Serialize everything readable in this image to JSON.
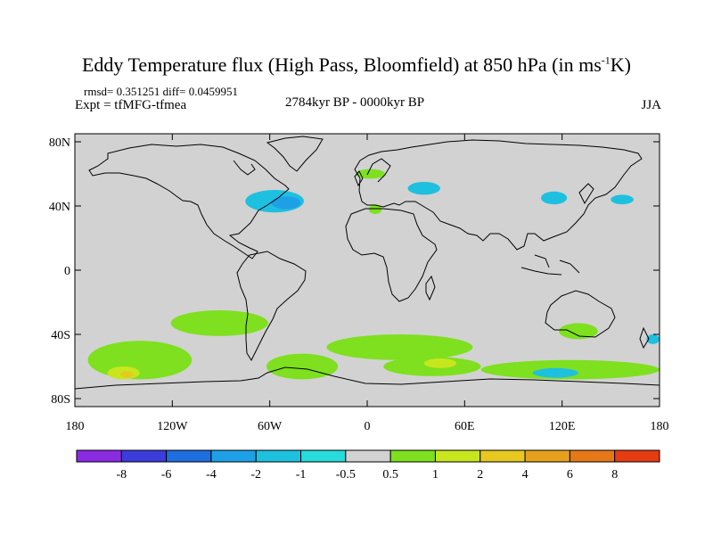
{
  "title": {
    "main": "Eddy Temperature flux (High Pass, Bloomfield) at 850 hPa (in ms",
    "sup": "-1",
    "tail": "K)"
  },
  "stats": "rmsd= 0.351251  diff= 0.0459951",
  "experiment": "Expt = tfMFG-tfmea",
  "period": "2784kyr BP - 0000kyr BP",
  "season": "JJA",
  "axes": {
    "lat_ticks": [
      "80N",
      "40N",
      "0",
      "40S",
      "80S"
    ],
    "lat_values": [
      80,
      40,
      0,
      -40,
      -80
    ],
    "lon_ticks": [
      "180",
      "120W",
      "60W",
      "0",
      "60E",
      "120E",
      "180"
    ],
    "lon_values": [
      -180,
      -120,
      -60,
      0,
      60,
      120,
      180
    ]
  },
  "colorbar": {
    "labels": [
      "-8",
      "-6",
      "-4",
      "-2",
      "-1",
      "-0.5",
      "0.5",
      "1",
      "2",
      "4",
      "6",
      "8"
    ],
    "colors": [
      "#8a2be2",
      "#3c3cdc",
      "#1e6ee0",
      "#1ea0e6",
      "#1ec0e0",
      "#28dcdc",
      "#d2d2d2",
      "#7ee01e",
      "#c8e61e",
      "#e6c81e",
      "#e6a01e",
      "#e67818",
      "#e63c14"
    ]
  },
  "colors": {
    "background_field": "#d2d2d2",
    "coast": "#000000"
  },
  "anomalies": [
    {
      "level": "-1",
      "lon": -57,
      "lat": 43,
      "rlon": 18,
      "rlat": 7
    },
    {
      "level": "-2",
      "lon": -50,
      "lat": 42,
      "rlon": 9,
      "rlat": 4
    },
    {
      "level": "-1",
      "lon": 35,
      "lat": 51,
      "rlon": 10,
      "rlat": 4
    },
    {
      "level": "-1",
      "lon": 115,
      "lat": 45,
      "rlon": 8,
      "rlat": 4
    },
    {
      "level": "-1",
      "lon": 157,
      "lat": 44,
      "rlon": 7,
      "rlat": 3
    },
    {
      "level": "1",
      "lon": 2,
      "lat": 60,
      "rlon": 9,
      "rlat": 3
    },
    {
      "level": "1",
      "lon": 5,
      "lat": 38,
      "rlon": 4,
      "rlat": 3
    },
    {
      "level": "1",
      "lon": -91,
      "lat": -33,
      "rlon": 30,
      "rlat": 8
    },
    {
      "level": "1",
      "lon": -140,
      "lat": -56,
      "rlon": 32,
      "rlat": 12
    },
    {
      "level": "2",
      "lon": -150,
      "lat": -64,
      "rlon": 10,
      "rlat": 4
    },
    {
      "level": "4",
      "lon": -148,
      "lat": -65,
      "rlon": 4,
      "rlat": 2
    },
    {
      "level": "1",
      "lon": 20,
      "lat": -48,
      "rlon": 45,
      "rlat": 8
    },
    {
      "level": "1",
      "lon": 40,
      "lat": -60,
      "rlon": 30,
      "rlat": 6
    },
    {
      "level": "2",
      "lon": 45,
      "lat": -58,
      "rlon": 10,
      "rlat": 3
    },
    {
      "level": "1",
      "lon": 125,
      "lat": -62,
      "rlon": 55,
      "rlat": 6
    },
    {
      "level": "1",
      "lon": 130,
      "lat": -38,
      "rlon": 12,
      "rlat": 5
    },
    {
      "level": "1",
      "lon": -40,
      "lat": -60,
      "rlon": 22,
      "rlat": 8
    },
    {
      "level": "-1",
      "lon": 116,
      "lat": -64,
      "rlon": 14,
      "rlat": 3
    },
    {
      "level": "-1",
      "lon": 176,
      "lat": -43,
      "rlon": 4,
      "rlat": 3
    }
  ]
}
